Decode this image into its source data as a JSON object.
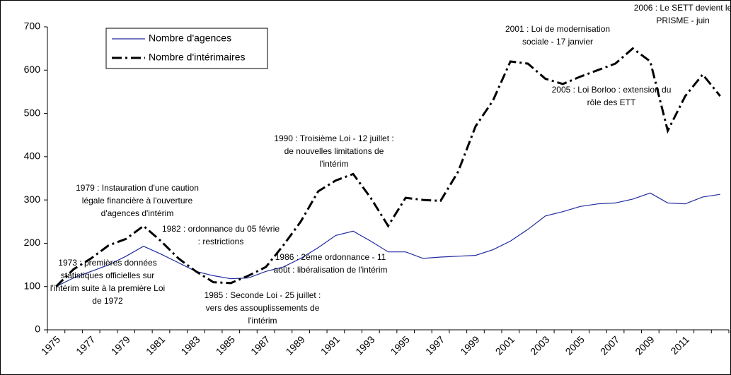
{
  "chart_data": {
    "type": "line",
    "categories": [
      "1975",
      null,
      "1977",
      null,
      "1979",
      null,
      "1981",
      null,
      "1983",
      null,
      "1985",
      null,
      "1987",
      null,
      "1989",
      null,
      "1991",
      null,
      "1993",
      null,
      "1995",
      null,
      "1997",
      null,
      "1999",
      null,
      "2001",
      null,
      "2003",
      null,
      "2005",
      null,
      "2007",
      null,
      "2009",
      null,
      "2011",
      null,
      null
    ],
    "series": [
      {
        "name": "Nombre d'agences",
        "color": "#1f2a9e",
        "dash": false,
        "values": [
          100,
          120,
          135,
          150,
          170,
          193,
          175,
          155,
          135,
          125,
          118,
          120,
          135,
          145,
          165,
          190,
          218,
          228,
          205,
          180,
          180,
          165,
          168,
          170,
          172,
          185,
          205,
          232,
          263,
          273,
          285,
          291,
          293,
          302,
          316,
          293,
          291,
          307,
          313
        ]
      },
      {
        "name": "Nombre d'intérimaires",
        "color": "#000000",
        "dash": true,
        "values": [
          100,
          140,
          165,
          195,
          210,
          240,
          205,
          165,
          135,
          110,
          108,
          125,
          145,
          195,
          250,
          320,
          345,
          360,
          305,
          240,
          305,
          300,
          298,
          365,
          470,
          530,
          620,
          615,
          580,
          568,
          585,
          600,
          615,
          650,
          620,
          460,
          540,
          590,
          540
        ]
      }
    ],
    "ylim": [
      0,
      700
    ],
    "yticks": [
      0,
      100,
      200,
      300,
      400,
      500,
      600,
      700
    ],
    "annotations": [
      [
        "2006 : Le SETT devient le",
        "PRISME - juin"
      ],
      [
        "2001 : Loi de modernisation",
        "sociale - 17 janvier"
      ],
      [
        "2005 : Loi Borloo : extension du",
        "rôle des ETT"
      ],
      [
        "1990 : Troisième Loi - 12 juillet :",
        "de nouvelles limitations de",
        "l'intérim"
      ],
      [
        "1979 : Instauration d'une caution",
        "légale financière à l'ouverture",
        "d'agences d'intérim"
      ],
      [
        "1982 : ordonnance du 05 févrie",
        ": restrictions"
      ],
      [
        "1973 : premières données",
        "statistiques officielles sur",
        "l'intérim suite à la première Loi",
        "de 1972"
      ],
      [
        "1986 : 2ème ordonnance - 11",
        "août : libéralisation de l'intérim"
      ],
      [
        "1985 : Seconde Loi - 25 juillet :",
        "vers des assouplissements de",
        "l'intérim"
      ]
    ]
  }
}
